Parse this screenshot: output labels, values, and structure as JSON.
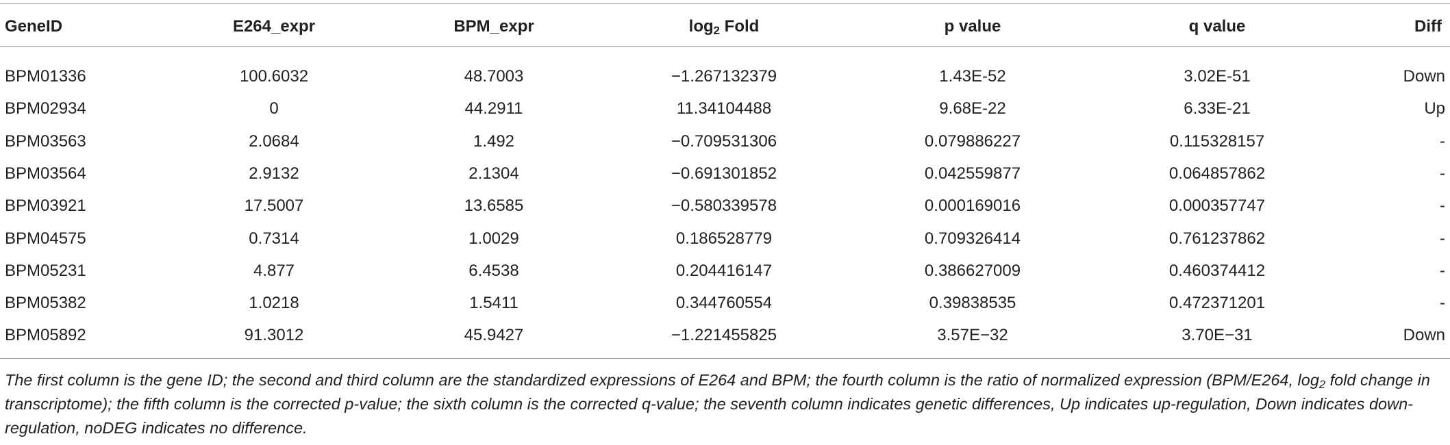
{
  "table": {
    "header": [
      "GeneID",
      "E264_expr",
      "BPM_expr",
      [
        "log",
        "2",
        " Fold"
      ],
      "p value",
      "q value",
      "Diff"
    ],
    "rows": [
      [
        "BPM01336",
        "100.6032",
        "48.7003",
        "−1.267132379",
        "1.43E-52",
        "3.02E-51",
        "Down"
      ],
      [
        "BPM02934",
        "0",
        "44.2911",
        "11.34104488",
        "9.68E-22",
        "6.33E-21",
        "Up"
      ],
      [
        "BPM03563",
        "2.0684",
        "1.492",
        "−0.709531306",
        "0.079886227",
        "0.115328157",
        "-"
      ],
      [
        "BPM03564",
        "2.9132",
        "2.1304",
        "−0.691301852",
        "0.042559877",
        "0.064857862",
        "-"
      ],
      [
        "BPM03921",
        "17.5007",
        "13.6585",
        "−0.580339578",
        "0.000169016",
        "0.000357747",
        "-"
      ],
      [
        "BPM04575",
        "0.7314",
        "1.0029",
        "0.186528779",
        "0.709326414",
        "0.761237862",
        "-"
      ],
      [
        "BPM05231",
        "4.877",
        "6.4538",
        "0.204416147",
        "0.386627009",
        "0.460374412",
        "-"
      ],
      [
        "BPM05382",
        "1.0218",
        "1.5411",
        "0.344760554",
        "0.39838535",
        "0.472371201",
        "-"
      ],
      [
        "BPM05892",
        "91.3012",
        "45.9427",
        "−1.221455825",
        "3.57E−32",
        "3.70E−31",
        "Down"
      ]
    ]
  },
  "caption": [
    "The first column is the gene ID; the second and third column are the standardized expressions of E264 and BPM; the fourth column is the ratio of normalized expression (BPM/E264, log",
    "2",
    " fold change in transcriptome); the fifth column is the corrected p-value; the sixth column is the corrected q-value; the seventh column indicates genetic differences, Up indicates up-regulation, Down indicates down-regulation, noDEG indicates no difference."
  ]
}
